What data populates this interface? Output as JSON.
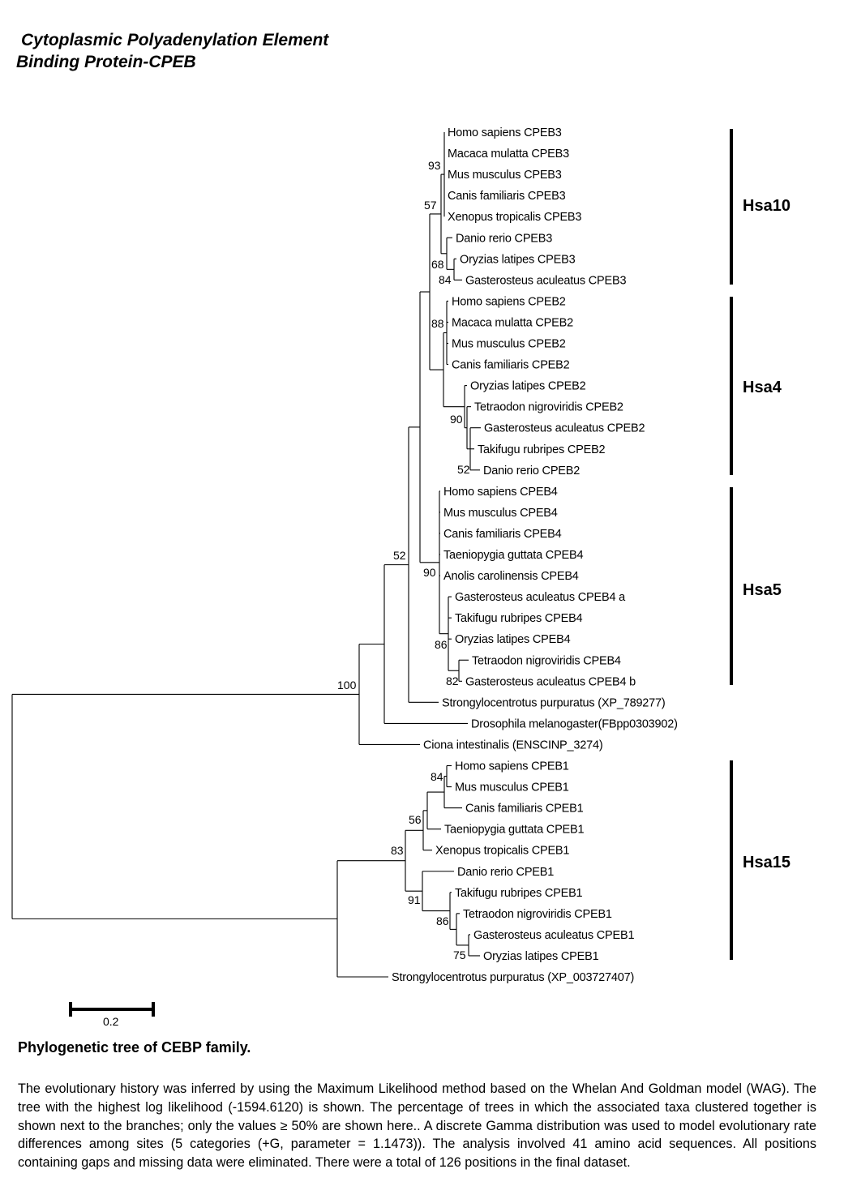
{
  "title_line1": "Cytoplasmic Polyadenylation Element",
  "title_line2": "Binding Protein-CPEB",
  "taxa": [
    "Homo sapiens CPEB3",
    "Macaca mulatta CPEB3",
    "Mus musculus CPEB3",
    "Canis familiaris CPEB3",
    "Xenopus tropicalis CPEB3",
    "Danio rerio CPEB3",
    "Oryzias latipes CPEB3",
    "Gasterosteus aculeatus CPEB3",
    "Homo sapiens CPEB2",
    "Macaca mulatta CPEB2",
    "Mus musculus CPEB2",
    "Canis familiaris CPEB2",
    "Oryzias latipes CPEB2",
    "Tetraodon nigroviridis CPEB2",
    "Gasterosteus aculeatus CPEB2",
    "Takifugu rubripes CPEB2",
    "Danio rerio CPEB2",
    "Homo sapiens CPEB4",
    "Mus musculus CPEB4",
    "Canis familiaris CPEB4",
    "Taeniopygia guttata CPEB4",
    "Anolis carolinensis CPEB4",
    "Gasterosteus aculeatus CPEB4 a",
    "Takifugu rubripes CPEB4",
    "Oryzias latipes CPEB4",
    "Tetraodon nigroviridis CPEB4",
    "Gasterosteus aculeatus CPEB4 b",
    "Strongylocentrotus purpuratus (XP_789277)",
    "Drosophila melanogaster(FBpp0303902)",
    "Ciona intestinalis (ENSCINP_3274)",
    "Homo sapiens CPEB1",
    "Mus musculus CPEB1",
    "Canis familiaris CPEB1",
    "Taeniopygia guttata CPEB1",
    "Xenopus tropicalis CPEB1",
    "Danio rerio CPEB1",
    "Takifugu rubripes CPEB1",
    "Tetraodon nigroviridis CPEB1",
    "Gasterosteus aculeatus CPEB1",
    "Oryzias latipes CPEB1",
    "Strongylocentrotus purpuratus (XP_003727407)"
  ],
  "bootstrap_values": [
    "93",
    "57",
    "68",
    "84",
    "88",
    "90",
    "52",
    "52",
    "90",
    "86",
    "82",
    "100",
    "84",
    "56",
    "83",
    "91",
    "86",
    "75"
  ],
  "clades": [
    {
      "label": "Hsa10"
    },
    {
      "label": "Hsa4"
    },
    {
      "label": "Hsa5"
    },
    {
      "label": "Hsa15"
    }
  ],
  "scale_bar_label": "0.2",
  "caption_title": "Phylogenetic tree of CEBP family.",
  "caption_text": "The evolutionary history was inferred by using the Maximum Likelihood method based on the Whelan And Goldman model (WAG). The tree with the highest log likelihood (-1594.6120) is shown. The percentage of trees in which the associated taxa clustered together is shown next to the branches; only the values ≥ 50% are shown here.. A discrete Gamma distribution was used to model evolutionary rate differences among sites (5 categories (+G, parameter = 1.1473)). The analysis involved 41 amino acid sequences. All positions containing gaps and missing data were eliminated. There were a total of 126 positions in the final dataset."
}
